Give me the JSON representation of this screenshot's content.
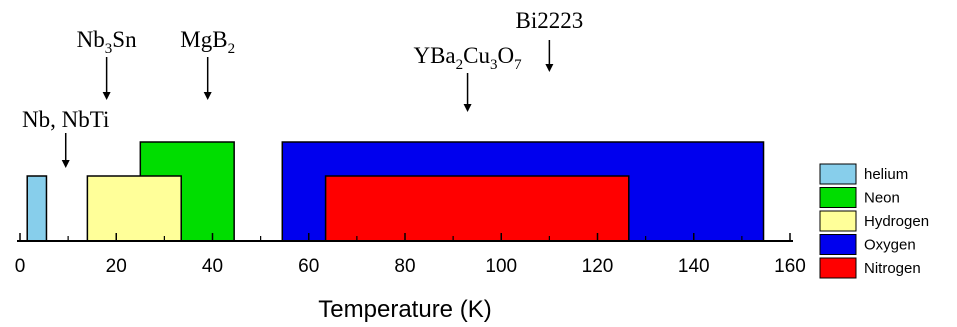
{
  "chart_data": {
    "type": "bar",
    "title": "",
    "xlabel": "Temperature (K)",
    "ylabel": "",
    "xlim": [
      0,
      160
    ],
    "xticks": [
      0,
      20,
      40,
      60,
      80,
      100,
      120,
      140,
      160
    ],
    "grid": false,
    "legend_position": "right",
    "series": [
      {
        "name": "helium",
        "color": "#87CEEB",
        "x_start": 1.5,
        "x_end": 5.5,
        "level": 2
      },
      {
        "name": "Neon",
        "color": "#00DD00",
        "x_start": 25,
        "x_end": 44.5,
        "level": 3
      },
      {
        "name": "Hydrogen",
        "color": "#FFFF99",
        "x_start": 14,
        "x_end": 33.5,
        "level": 2
      },
      {
        "name": "Oxygen",
        "color": "#0000EE",
        "x_start": 54.5,
        "x_end": 154.5,
        "level": 3
      },
      {
        "name": "Nitrogen",
        "color": "#FF0000",
        "x_start": 63.5,
        "x_end": 126.5,
        "level": 2
      }
    ],
    "annotations": [
      {
        "text": "Nb, NbTi",
        "base": "Nb, NbTi",
        "sub": "",
        "sub_parts": [],
        "x": 9.5,
        "row": 1
      },
      {
        "text": "Nb3Sn",
        "parts": [
          {
            "t": "Nb",
            "sub": false
          },
          {
            "t": "3",
            "sub": true
          },
          {
            "t": "Sn",
            "sub": false
          }
        ],
        "x": 18,
        "row": 3
      },
      {
        "text": "MgB2",
        "parts": [
          {
            "t": "MgB",
            "sub": false
          },
          {
            "t": "2",
            "sub": true
          }
        ],
        "x": 39,
        "row": 3
      },
      {
        "text": "YBa2Cu3O7",
        "parts": [
          {
            "t": "YBa",
            "sub": false
          },
          {
            "t": "2",
            "sub": true
          },
          {
            "t": "Cu",
            "sub": false
          },
          {
            "t": "3",
            "sub": true
          },
          {
            "t": "O",
            "sub": false
          },
          {
            "t": "7",
            "sub": true
          }
        ],
        "x": 93,
        "row": 2
      },
      {
        "text": "Bi2223",
        "parts": [
          {
            "t": "Bi2223",
            "sub": false
          }
        ],
        "x": 110,
        "row": 4
      }
    ]
  }
}
